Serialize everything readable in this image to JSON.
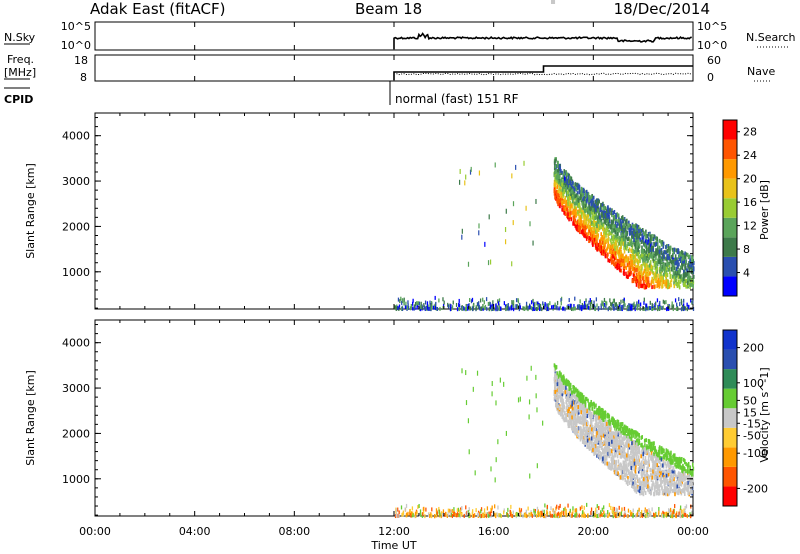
{
  "header": {
    "station": "Adak East (fitACF)",
    "beam": "Beam 18",
    "date": "18/Dec/2014"
  },
  "nsky_panel": {
    "left_label": "N.Sky",
    "left_ticks": [
      "10^5",
      "10^0"
    ],
    "right_ticks": [
      "10^5",
      "10^0"
    ],
    "right_label": "N.Search"
  },
  "freq_panel": {
    "left_label_1": "Freq.",
    "left_label_2": "[MHz]",
    "left_ticks": [
      "18",
      "8"
    ],
    "right_ticks": [
      "60",
      "0"
    ],
    "right_label": "Nave"
  },
  "cpid": {
    "label": "CPID",
    "mode": "normal (fast) 151 RF"
  },
  "colors": {
    "power_scale": [
      "#0000ff",
      "#2a4fb0",
      "#3d7a4a",
      "#5aa45a",
      "#99cc33",
      "#e8c21a",
      "#ff9900",
      "#ff5500",
      "#ff0000"
    ],
    "velocity_scale": [
      "#ff0000",
      "#ff5500",
      "#ff9900",
      "#ffcc33",
      "#c8c8c8",
      "#66cc33",
      "#2e8b57",
      "#2a4fb0",
      "#1133cc"
    ]
  },
  "chart_data": [
    {
      "type": "heatmap",
      "title": "",
      "xlabel": "Time UT",
      "ylabel": "Slant Range [km]",
      "xlim": [
        "00:00",
        "00:00"
      ],
      "ylim": [
        180,
        4500
      ],
      "x_ticks": [
        "00:00",
        "04:00",
        "08:00",
        "12:00",
        "16:00",
        "20:00",
        "00:00"
      ],
      "y_ticks": [
        1000,
        2000,
        3000,
        4000
      ],
      "colorbar": {
        "label": "Power [dB]",
        "ticks": [
          4,
          8,
          12,
          16,
          20,
          24,
          28
        ],
        "range": [
          0,
          30
        ]
      },
      "observations": "Data only after 12:00 UT; near-range ground scatter 200-400 km; backscatter band descending from ~3400 km at 18:30 UT to ~900 km at 24:00 UT with peak power ~28-30 dB near 1000 km"
    },
    {
      "type": "heatmap",
      "title": "",
      "xlabel": "Time UT",
      "ylabel": "Slant Range [km]",
      "xlim": [
        "00:00",
        "00:00"
      ],
      "ylim": [
        180,
        4500
      ],
      "x_ticks": [
        "00:00",
        "04:00",
        "08:00",
        "12:00",
        "16:00",
        "20:00",
        "00:00"
      ],
      "y_ticks": [
        1000,
        2000,
        3000,
        4000
      ],
      "colorbar": {
        "label": "Velocity [m s^-1]",
        "ticks": [
          -200,
          -100,
          -50,
          -15,
          15,
          50,
          100,
          200
        ],
        "range": [
          -250,
          250
        ]
      },
      "observations": "Mostly gray (-15 to 15 m/s) ground scatter in the descending band, green (15-50 m/s) at its upper edge, orange near-range echoes"
    }
  ]
}
